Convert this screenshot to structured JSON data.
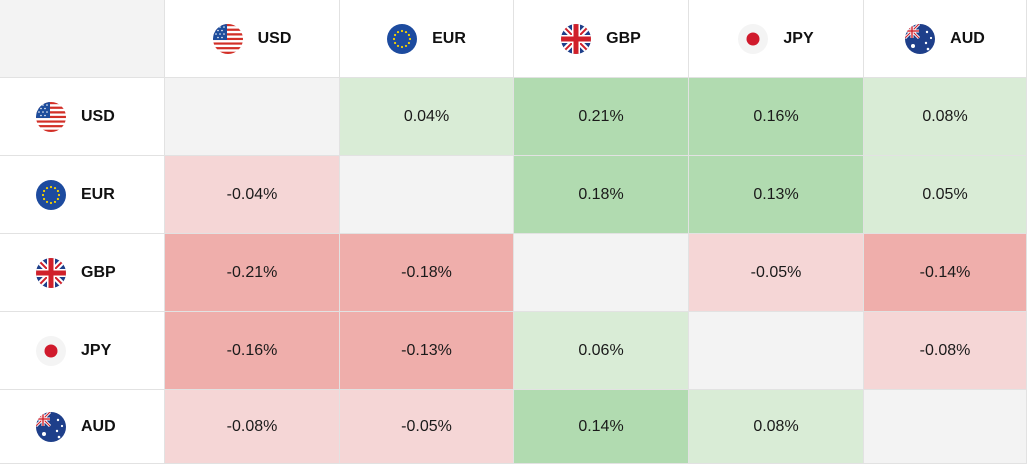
{
  "currencies": [
    {
      "code": "USD",
      "flag": "us-flag-icon"
    },
    {
      "code": "EUR",
      "flag": "eu-flag-icon"
    },
    {
      "code": "GBP",
      "flag": "gb-flag-icon"
    },
    {
      "code": "JPY",
      "flag": "jp-flag-icon"
    },
    {
      "code": "AUD",
      "flag": "au-flag-icon"
    }
  ],
  "colors": {
    "corner": "#f3f3f3",
    "diagonal": "#f3f3f3",
    "pos_weak": "#d9ecd6",
    "pos_strong": "#b1dbb0",
    "neg_weak": "#f5d6d6",
    "neg_strong": "#efaeab",
    "border": "#e2e2e2"
  },
  "chart_data": {
    "type": "heatmap",
    "rows": [
      "USD",
      "EUR",
      "GBP",
      "JPY",
      "AUD"
    ],
    "columns": [
      "USD",
      "EUR",
      "GBP",
      "JPY",
      "AUD"
    ],
    "cells": [
      [
        null,
        "0.04%",
        "0.21%",
        "0.16%",
        "0.08%"
      ],
      [
        "-0.04%",
        null,
        "0.18%",
        "0.13%",
        "0.05%"
      ],
      [
        "-0.21%",
        "-0.18%",
        null,
        "-0.05%",
        "-0.14%"
      ],
      [
        "-0.16%",
        "-0.13%",
        "0.06%",
        null,
        "-0.08%"
      ],
      [
        "-0.08%",
        "-0.05%",
        "0.14%",
        "0.08%",
        null
      ]
    ],
    "values": [
      [
        null,
        0.04,
        0.21,
        0.16,
        0.08
      ],
      [
        -0.04,
        null,
        0.18,
        0.13,
        0.05
      ],
      [
        -0.21,
        -0.18,
        null,
        -0.05,
        -0.14
      ],
      [
        -0.16,
        -0.13,
        0.06,
        null,
        -0.08
      ],
      [
        -0.08,
        -0.05,
        0.14,
        0.08,
        null
      ]
    ]
  }
}
